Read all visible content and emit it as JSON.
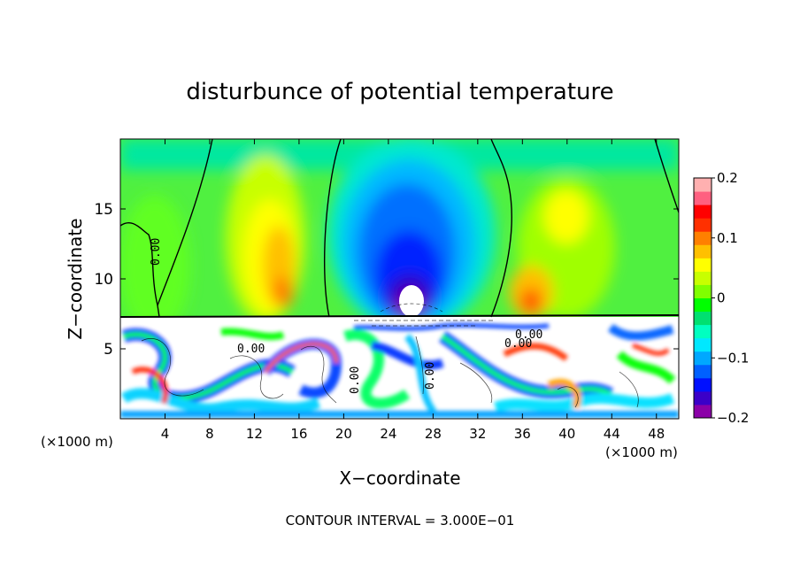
{
  "chart_data": {
    "type": "heatmap",
    "title": "disturbunce of potential temperature",
    "xlabel": "X−coordinate",
    "ylabel": "Z−coordinate",
    "x_unit_left": "(×1000 m)",
    "x_unit_right": "(×1000 m)",
    "xlim": [
      0,
      50
    ],
    "ylim": [
      0,
      20
    ],
    "x_ticks": [
      4,
      8,
      12,
      16,
      20,
      24,
      28,
      32,
      36,
      40,
      44,
      48
    ],
    "y_ticks": [
      5,
      10,
      15
    ],
    "footer": "CONTOUR INTERVAL = 3.000E−01",
    "contour_labels": [
      "0.00",
      "0.00",
      "0.00",
      "0.00",
      "0.00",
      "0.00"
    ],
    "colorbar": {
      "range": [
        -0.2,
        0.2
      ],
      "tick_values": [
        0.2,
        0.1,
        0,
        -0.1,
        -0.2
      ],
      "tick_labels": [
        "0.2",
        "0.1",
        "0",
        "−0.1",
        "−0.2"
      ],
      "colors": [
        "#8b00a8",
        "#3b00c8",
        "#0010ff",
        "#0060ff",
        "#00a8ff",
        "#00e8ff",
        "#00ffc0",
        "#00e070",
        "#00ff00",
        "#80ff00",
        "#c8ff00",
        "#ffff00",
        "#ffc000",
        "#ff8000",
        "#ff3000",
        "#ff0000",
        "#ff6080",
        "#ffb0b0"
      ]
    },
    "regions": [
      {
        "name": "upper-background",
        "value": 0.03
      },
      {
        "name": "warm-plume-left",
        "x": 13.5,
        "z": 12,
        "value": 0.1
      },
      {
        "name": "cold-plume-center",
        "x": 26,
        "z": 11,
        "value": -0.15
      },
      {
        "name": "warm-plume-right",
        "x": 37,
        "z": 9,
        "value": 0.1
      },
      {
        "name": "turbulent-layer",
        "z_range": [
          0,
          7.3
        ],
        "value": "mixed"
      }
    ]
  }
}
